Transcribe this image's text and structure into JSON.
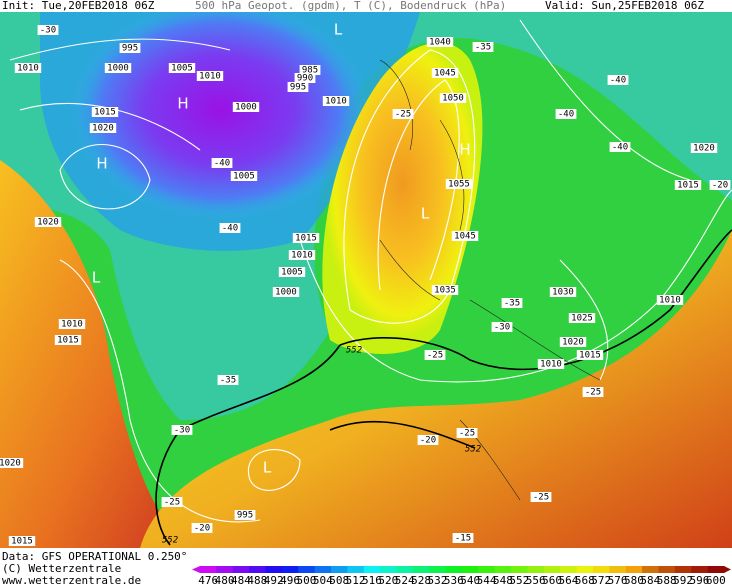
{
  "header": {
    "init": "Init: Tue,20FEB2018 06Z",
    "title": "500 hPa Geopot. (gpdm), T (C), Bodendruck (hPa)",
    "valid": "Valid: Sun,25FEB2018 06Z"
  },
  "footer": {
    "data": "Data: GFS OPERATIONAL 0.250°",
    "copyright": "(C) Wetterzentrale",
    "url": "www.wetterzentrale.de"
  },
  "map": {
    "isobar_labels": [
      995,
      1000,
      1005,
      1010,
      1010,
      1015,
      1020,
      1020,
      985,
      990,
      995,
      1000,
      1010,
      1005,
      1015,
      1010,
      1005,
      1000,
      1010,
      1015,
      1040,
      1045,
      1050,
      1055,
      1045,
      1035,
      1030,
      1025,
      1020,
      1015,
      1010,
      1020,
      1015,
      1010,
      1020,
      995,
      1015
    ],
    "temperature_labels": [
      -30,
      -40,
      -40,
      -35,
      -40,
      -40,
      -40,
      -25,
      -35,
      -30,
      -25,
      -25,
      -35,
      -30,
      -20,
      -25,
      -25,
      -20,
      -25,
      -15,
      -20
    ],
    "geopotential_labels": [
      552,
      552,
      552
    ],
    "pressure_centers": [
      "L",
      "H",
      "H",
      "L",
      "H",
      "L",
      "L"
    ]
  },
  "colorbar": {
    "ticks": [
      476,
      480,
      484,
      488,
      492,
      496,
      500,
      504,
      508,
      512,
      516,
      520,
      524,
      528,
      532,
      536,
      540,
      544,
      548,
      552,
      556,
      560,
      564,
      568,
      572,
      576,
      580,
      584,
      588,
      592,
      596,
      600
    ]
  }
}
